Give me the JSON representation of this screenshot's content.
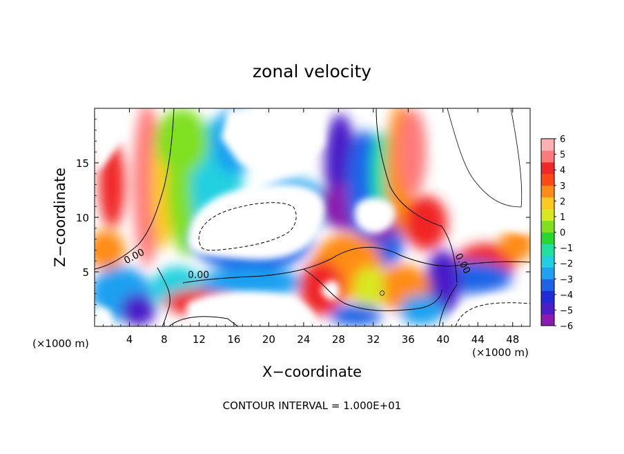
{
  "chart_data": {
    "type": "heatmap",
    "title": "zonal velocity",
    "xlabel": "X−coordinate",
    "ylabel": "Z−coordinate",
    "x_unit": "(×1000 m)",
    "y_unit": "(×1000 m)",
    "xlim": [
      0,
      50
    ],
    "ylim": [
      0,
      20
    ],
    "x_ticks": [
      4,
      8,
      12,
      16,
      20,
      24,
      28,
      32,
      36,
      40,
      44,
      48
    ],
    "y_ticks": [
      5,
      10,
      15
    ],
    "colorbar": {
      "ticks": [
        "6",
        "5",
        "4",
        "3",
        "2",
        "1",
        "0",
        "−1",
        "−2",
        "−3",
        "−4",
        "−5",
        "−6"
      ],
      "min": -6,
      "max": 6,
      "colors": [
        "#8a1ab0",
        "#4a1fc8",
        "#1f2bd8",
        "#1f63e8",
        "#1fa0f0",
        "#20d0e0",
        "#20e0a0",
        "#28d830",
        "#80e020",
        "#d8e820",
        "#ffc820",
        "#ff8c18",
        "#ff4a18",
        "#f02828",
        "#ff7a7a",
        "#ffb0b0"
      ]
    },
    "contour_labels": [
      "0.00",
      "0.00",
      "0.00"
    ],
    "footer": "CONTOUR INTERVAL = 1.000E+01",
    "field_blobs": [
      {
        "x": 6,
        "y": 13,
        "rx": 1.6,
        "ry": 7.5,
        "v": 5
      },
      {
        "x": 2,
        "y": 13,
        "rx": 1.5,
        "ry": 4,
        "v": 4
      },
      {
        "x": 7.8,
        "y": 13,
        "rx": 1.3,
        "ry": 6,
        "v": 2
      },
      {
        "x": 1.3,
        "y": 7,
        "rx": 2.2,
        "ry": 1.8,
        "v": 3
      },
      {
        "x": 10.5,
        "y": 13,
        "rx": 2.2,
        "ry": 6.5,
        "v": 0
      },
      {
        "x": 14,
        "y": 13,
        "rx": 3,
        "ry": 6,
        "v": -2
      },
      {
        "x": 10,
        "y": 17,
        "rx": 3,
        "ry": 3,
        "v": 0
      },
      {
        "x": 16,
        "y": 17,
        "rx": 2.5,
        "ry": 3,
        "v": -3
      },
      {
        "x": 18,
        "y": 8,
        "rx": 7,
        "ry": 3,
        "v": -4
      },
      {
        "x": 23,
        "y": 11,
        "rx": 4,
        "ry": 2.5,
        "v": -3
      },
      {
        "x": 28.2,
        "y": 15,
        "rx": 1.8,
        "ry": 4.5,
        "v": -5
      },
      {
        "x": 29.2,
        "y": 11,
        "rx": 3.5,
        "ry": 2.2,
        "v": -6
      },
      {
        "x": 31,
        "y": 13,
        "rx": 2,
        "ry": 5,
        "v": -4
      },
      {
        "x": 33,
        "y": 14,
        "rx": 1.3,
        "ry": 4,
        "v": -1
      },
      {
        "x": 35,
        "y": 14,
        "rx": 1.5,
        "ry": 6.5,
        "v": 3
      },
      {
        "x": 36.5,
        "y": 16,
        "rx": 1.6,
        "ry": 4,
        "v": 5
      },
      {
        "x": 38,
        "y": 9.5,
        "rx": 2.5,
        "ry": 2.5,
        "v": 4
      },
      {
        "x": 33,
        "y": 7.5,
        "rx": 2.5,
        "ry": 2,
        "v": -4
      },
      {
        "x": 45,
        "y": 6,
        "rx": 3.5,
        "ry": 1.6,
        "v": 4
      },
      {
        "x": 48.5,
        "y": 7.5,
        "rx": 2,
        "ry": 1.5,
        "v": 3
      },
      {
        "x": 43,
        "y": 4.5,
        "rx": 5,
        "ry": 1.5,
        "v": -4
      },
      {
        "x": 40,
        "y": 4,
        "rx": 2,
        "ry": 3,
        "v": -5
      },
      {
        "x": 3,
        "y": 3,
        "rx": 3.5,
        "ry": 2.5,
        "v": -3
      },
      {
        "x": 5,
        "y": 1.5,
        "rx": 2,
        "ry": 1.5,
        "v": -5
      },
      {
        "x": 9.5,
        "y": 3.5,
        "rx": 3,
        "ry": 2,
        "v": -2
      },
      {
        "x": 12,
        "y": 2.2,
        "rx": 4,
        "ry": 1.2,
        "v": 4
      },
      {
        "x": 18,
        "y": 4,
        "rx": 6,
        "ry": 1.4,
        "v": -3
      },
      {
        "x": 29,
        "y": 5.5,
        "rx": 4,
        "ry": 3,
        "v": 3
      },
      {
        "x": 26,
        "y": 3.5,
        "rx": 2.5,
        "ry": 2.5,
        "v": 4
      },
      {
        "x": 35.5,
        "y": 3.5,
        "rx": 3,
        "ry": 2.2,
        "v": 3
      },
      {
        "x": 31.5,
        "y": 3.5,
        "rx": 1.8,
        "ry": 2,
        "v": 1
      },
      {
        "x": 30,
        "y": 1,
        "rx": 3,
        "ry": 1,
        "v": -4
      },
      {
        "x": 37.5,
        "y": 1.5,
        "rx": 2.5,
        "ry": 1.4,
        "v": -3
      },
      {
        "x": 33,
        "y": 9,
        "rx": 1.5,
        "ry": 1.2,
        "v": -6
      }
    ]
  }
}
